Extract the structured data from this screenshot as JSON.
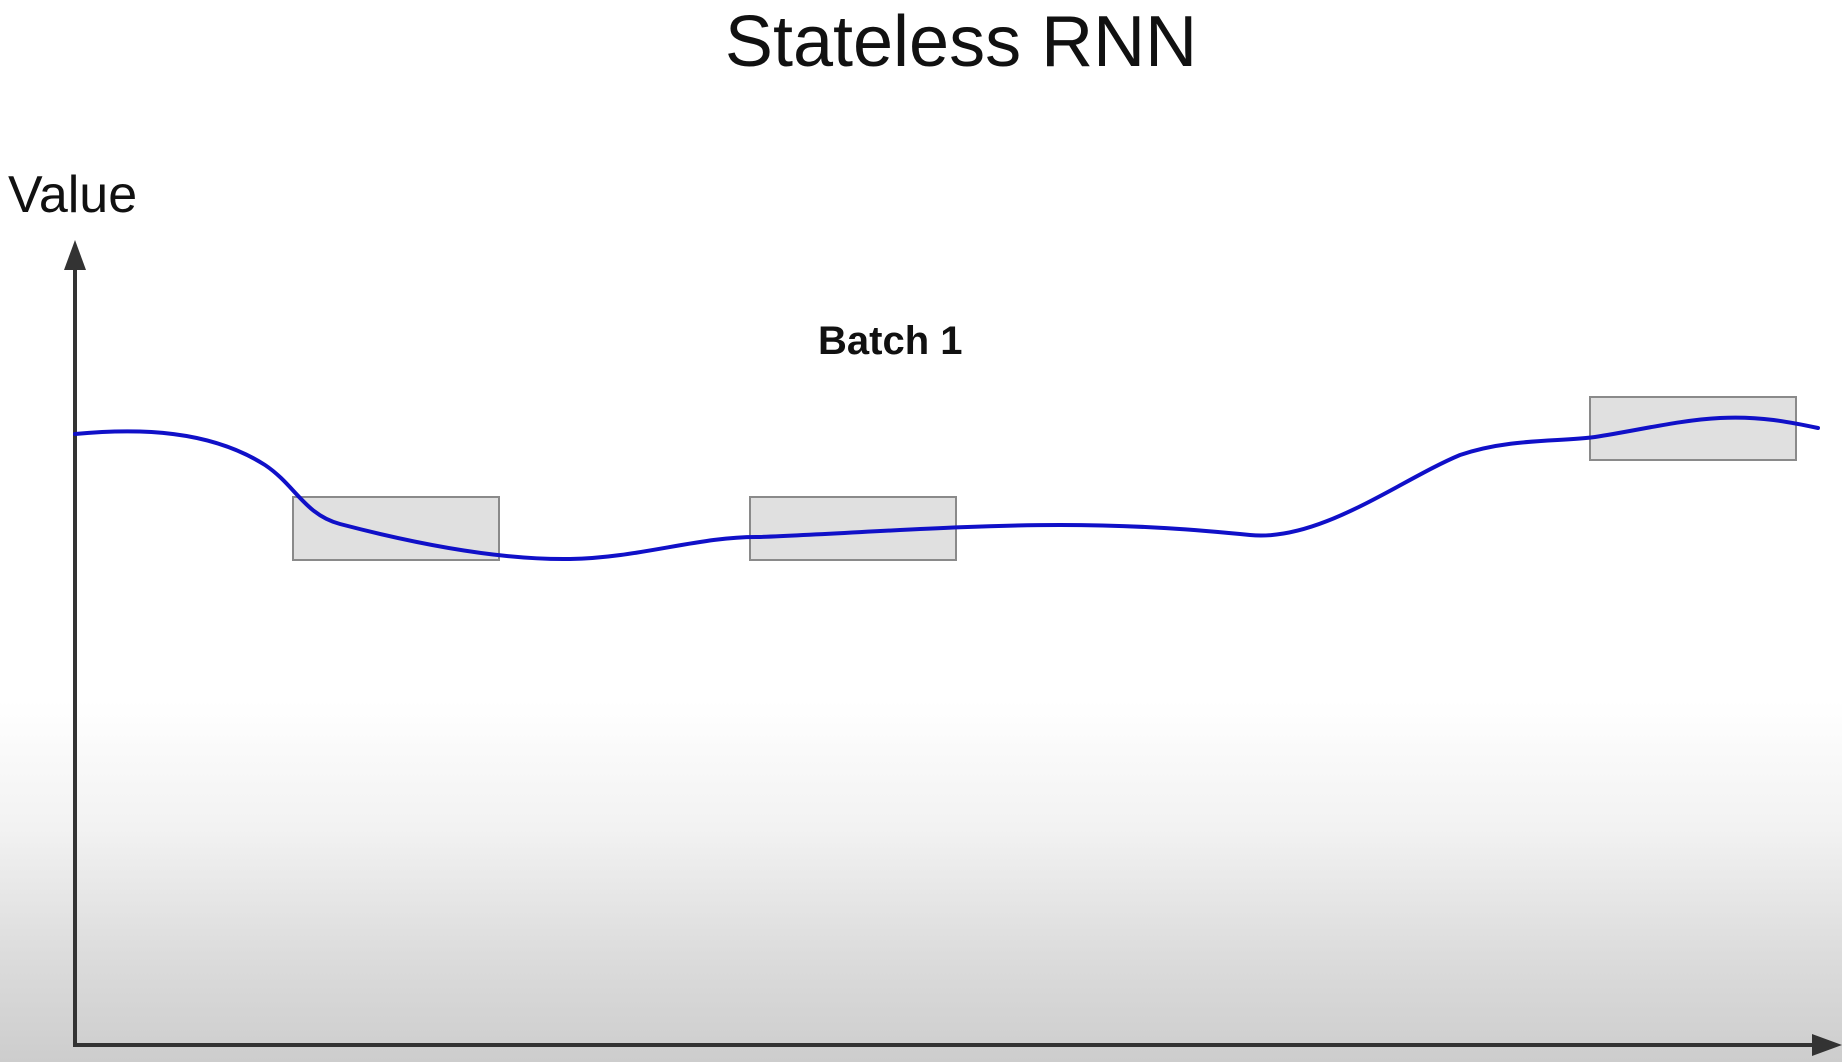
{
  "title": "Stateless RNN",
  "y_axis_label": "Value",
  "batch_label": "Batch 1",
  "colors": {
    "curve": "#1010c8",
    "axis": "#333333",
    "window_fill": "#e0e0e0",
    "window_stroke": "#8a8a8a"
  },
  "windows": [
    {
      "name": "window-1"
    },
    {
      "name": "window-2"
    },
    {
      "name": "window-3"
    }
  ]
}
